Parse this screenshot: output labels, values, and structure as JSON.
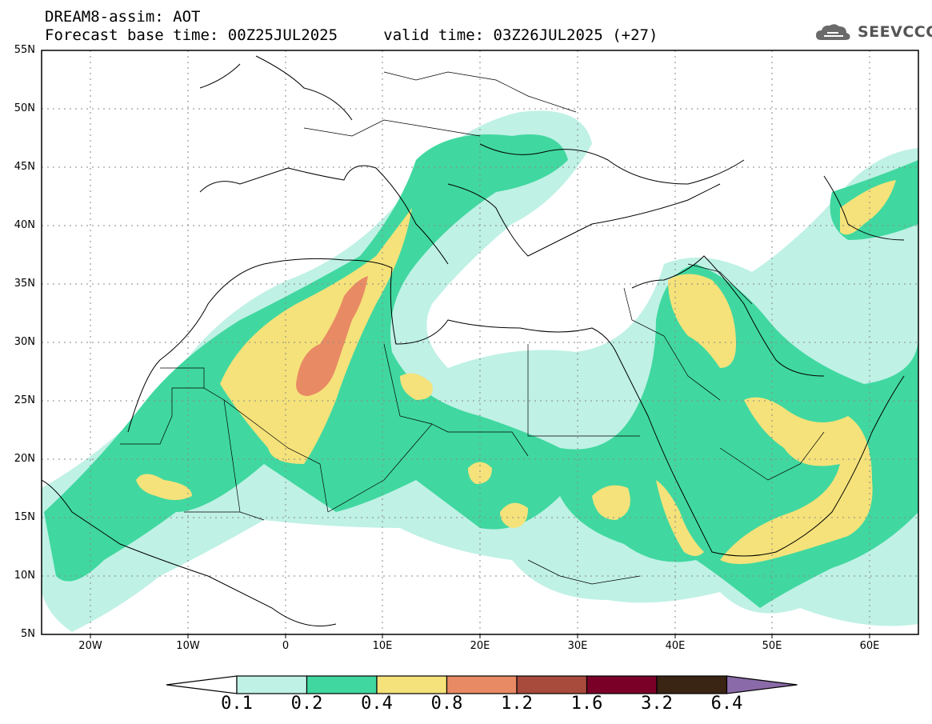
{
  "header": {
    "line1": "DREAM8-assim: AOT",
    "base_time": "Forecast base time: 00Z25JUL2025",
    "valid_time": "valid time: 03Z26JUL2025 (+27)"
  },
  "logo": {
    "text": "SEEVCCC",
    "icon": "cloud-icon"
  },
  "map": {
    "lat_labels": [
      "55N",
      "50N",
      "45N",
      "40N",
      "35N",
      "30N",
      "25N",
      "20N",
      "15N",
      "10N",
      "5N"
    ],
    "lon_labels": [
      "20W",
      "10W",
      "0",
      "10E",
      "20E",
      "30E",
      "40E",
      "50E",
      "60E"
    ]
  },
  "colorbar": {
    "levels": [
      "0.1",
      "0.2",
      "0.4",
      "0.8",
      "1.2",
      "1.6",
      "3.2",
      "6.4"
    ],
    "colors": [
      "#ffffff",
      "#bff1e5",
      "#40d8a0",
      "#f5e27a",
      "#e88a64",
      "#a84a3c",
      "#7a0028",
      "#3a2414",
      "#8a6aa8"
    ]
  }
}
